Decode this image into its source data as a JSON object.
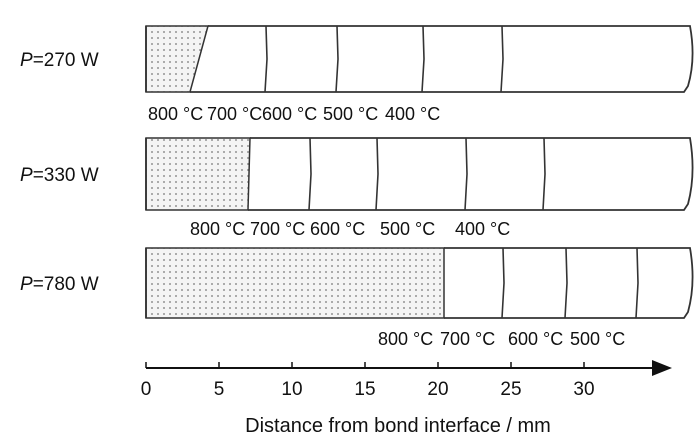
{
  "rows": [
    {
      "power_label": "=270 W",
      "power_symbol": "P",
      "temps": [
        "800 °C",
        "700 °C",
        "600 °C",
        "500 °C",
        "400 °C"
      ]
    },
    {
      "power_label": "=330 W",
      "power_symbol": "P",
      "temps": [
        "800 °C",
        "700 °C",
        "600 °C",
        "500 °C",
        "400 °C"
      ]
    },
    {
      "power_label": "=780 W",
      "power_symbol": "P",
      "temps": [
        "800 °C",
        "700 °C",
        "600 °C",
        "500 °C"
      ]
    }
  ],
  "axis": {
    "ticks": [
      "0",
      "5",
      "10",
      "15",
      "20",
      "25",
      "30"
    ],
    "title": "Distance from bond interface / mm"
  }
}
